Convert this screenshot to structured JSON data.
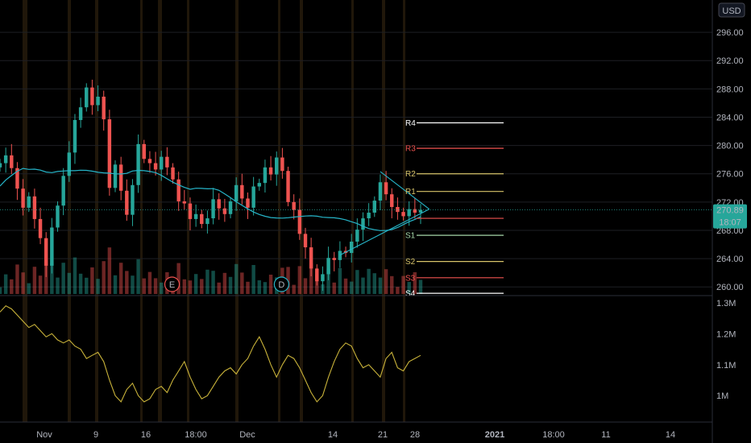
{
  "currency_label": "USD",
  "price_badge": {
    "value": "270.89",
    "countdown": "18:07"
  },
  "colors": {
    "background": "#000000",
    "up": "#26a69a",
    "down": "#ef5350",
    "ma": "#26b5c9",
    "oscillator": "#c9b33a",
    "triangle": "#26b5c9",
    "grid": "#1e1f24",
    "session": "#3a2a12"
  },
  "events": [
    {
      "label": "E",
      "date_index": 30,
      "color": "#ef5350"
    },
    {
      "label": "D",
      "date_index": 49,
      "color": "#26b5c9"
    }
  ],
  "chart_data": [
    {
      "type": "candlestick",
      "y_axis": {
        "ticks": [
          "260.00",
          "264.00",
          "268.00",
          "272.00",
          "276.00",
          "280.00",
          "284.00",
          "288.00",
          "292.00",
          "296.00"
        ],
        "ylim": [
          259,
          300
        ]
      },
      "x_axis": {
        "ticks": [
          "Nov",
          "9",
          "16",
          "18:00",
          "Dec",
          "14",
          "21",
          "28",
          "2021",
          "18:00",
          "11",
          "14"
        ]
      },
      "current_price": 270.89,
      "close_series": [
        277.5,
        278.6,
        276.8,
        273.9,
        271.2,
        272.8,
        269.6,
        266.9,
        263.0,
        268.4,
        271.5,
        275.7,
        279.0,
        283.6,
        285.4,
        288.2,
        285.7,
        286.9,
        283.7,
        274.0,
        277.3,
        273.6,
        270.2,
        274.4,
        280.2,
        278.1,
        277.5,
        276.6,
        278.4,
        276.9,
        275.2,
        272.1,
        271.8,
        269.6,
        270.3,
        268.9,
        269.7,
        272.4,
        271.1,
        270.3,
        272.1,
        274.4,
        272.5,
        271.2,
        274.2,
        274.7,
        276.9,
        275.9,
        278.3,
        276.4,
        272.0,
        270.9,
        267.5,
        265.6,
        262.6,
        260.8,
        261.8,
        264.1,
        263.8,
        265.1,
        264.8,
        266.4,
        268.1,
        269.7,
        270.5,
        272.2,
        274.8,
        273.1,
        271.3,
        270.6,
        270.0,
        271.0,
        270.5,
        270.89
      ],
      "pivot_levels": [
        {
          "label": "R4",
          "value": 283.2,
          "color": "#ffffff"
        },
        {
          "label": "R3",
          "value": 279.6,
          "color": "#ef5350"
        },
        {
          "label": "R2",
          "value": 276.0,
          "color": "#d8c46a"
        },
        {
          "label": "R1",
          "value": 273.5,
          "color": "#d8c46a"
        },
        {
          "label": "P",
          "value": 269.7,
          "color": "#ef5350"
        },
        {
          "label": "S1",
          "value": 267.3,
          "color": "#a5d6a7"
        },
        {
          "label": "S2",
          "value": 263.6,
          "color": "#d8c46a"
        },
        {
          "label": "S3",
          "value": 261.3,
          "color": "#ef5350"
        },
        {
          "label": "S4",
          "value": 259.1,
          "color": "#ffffff"
        }
      ]
    },
    {
      "type": "line",
      "y_axis": {
        "ticks": [
          "1M",
          "1.1M",
          "1.2M",
          "1.3M"
        ],
        "ylim": [
          0.92,
          1.31
        ]
      },
      "values": [
        1.27,
        1.29,
        1.28,
        1.26,
        1.24,
        1.22,
        1.23,
        1.21,
        1.19,
        1.2,
        1.18,
        1.17,
        1.18,
        1.16,
        1.15,
        1.12,
        1.13,
        1.14,
        1.11,
        1.05,
        1.0,
        0.98,
        1.02,
        1.04,
        1.0,
        0.98,
        0.99,
        1.02,
        1.03,
        1.01,
        1.05,
        1.08,
        1.11,
        1.06,
        1.02,
        0.99,
        1.0,
        1.03,
        1.06,
        1.08,
        1.09,
        1.07,
        1.1,
        1.12,
        1.16,
        1.19,
        1.15,
        1.1,
        1.06,
        1.1,
        1.13,
        1.12,
        1.09,
        1.05,
        1.01,
        0.98,
        1.0,
        1.06,
        1.11,
        1.15,
        1.17,
        1.16,
        1.12,
        1.09,
        1.1,
        1.08,
        1.06,
        1.12,
        1.14,
        1.09,
        1.08,
        1.11,
        1.12,
        1.13
      ]
    }
  ]
}
